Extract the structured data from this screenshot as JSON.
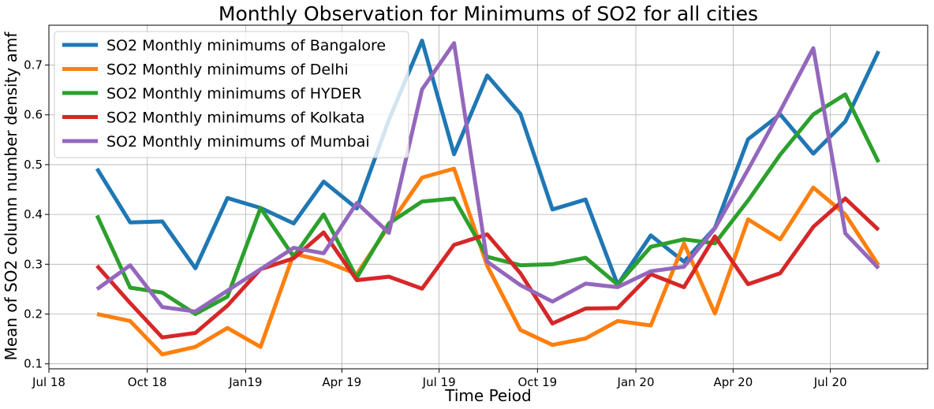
{
  "chart_data": {
    "type": "line",
    "title": "Monthly Observation for Minimums of SO2 for all cities",
    "xlabel": "Time Peiod",
    "ylabel": "Mean of SO2 column number density amf",
    "grid": true,
    "legend_position": "top-left",
    "x": [
      "2018-08",
      "2018-09",
      "2018-10",
      "2018-11",
      "2018-12",
      "2019-01",
      "2019-02",
      "2019-03",
      "2019-04",
      "2019-05",
      "2019-06",
      "2019-07",
      "2019-08",
      "2019-09",
      "2019-10",
      "2019-11",
      "2019-12",
      "2020-01",
      "2020-02",
      "2020-03",
      "2020-04",
      "2020-05",
      "2020-06",
      "2020-07",
      "2020-08"
    ],
    "xlim": [
      "2018-07-01",
      "2020-09-30"
    ],
    "ylim": [
      0.09,
      0.78
    ],
    "xticks": [
      {
        "date": "2018-07-01",
        "label": "Jul 18"
      },
      {
        "date": "2018-10-01",
        "label": "Oct 18"
      },
      {
        "date": "2019-01-01",
        "label": "Jan19"
      },
      {
        "date": "2019-04-01",
        "label": "Apr 19"
      },
      {
        "date": "2019-07-01",
        "label": "Jul 19"
      },
      {
        "date": "2019-10-01",
        "label": "Oct 19"
      },
      {
        "date": "2020-01-01",
        "label": "Jan 20"
      },
      {
        "date": "2020-04-01",
        "label": "Apr 20"
      },
      {
        "date": "2020-07-01",
        "label": "Jul 20"
      }
    ],
    "yticks": [
      {
        "value": 0.1,
        "label": "0.1"
      },
      {
        "value": 0.2,
        "label": "0.2"
      },
      {
        "value": 0.3,
        "label": "0.3"
      },
      {
        "value": 0.4,
        "label": "0.4"
      },
      {
        "value": 0.5,
        "label": "0.5"
      },
      {
        "value": 0.6,
        "label": "0.6"
      },
      {
        "value": 0.7,
        "label": "0.7"
      }
    ],
    "series": [
      {
        "name": "SO2 Monthly minimums of Bangalore",
        "color": "#1f77b4",
        "values": [
          0.492,
          0.384,
          0.386,
          0.292,
          0.433,
          0.413,
          0.382,
          0.466,
          0.412,
          0.59,
          0.749,
          0.521,
          0.679,
          0.602,
          0.41,
          0.43,
          0.259,
          0.358,
          0.305,
          0.373,
          0.551,
          0.601,
          0.522,
          0.587,
          0.728
        ]
      },
      {
        "name": "SO2 Monthly minimums of Delhi",
        "color": "#ff7f0e",
        "values": [
          0.2,
          0.186,
          0.119,
          0.134,
          0.172,
          0.134,
          0.321,
          0.307,
          0.28,
          0.377,
          0.474,
          0.492,
          0.297,
          0.168,
          0.138,
          0.151,
          0.186,
          0.177,
          0.342,
          0.201,
          0.39,
          0.35,
          0.454,
          0.4,
          0.298
        ]
      },
      {
        "name": "SO2 Monthly minimums of HYDER",
        "color": "#2ca02c",
        "values": [
          0.398,
          0.253,
          0.243,
          0.2,
          0.235,
          0.413,
          0.315,
          0.4,
          0.273,
          0.382,
          0.426,
          0.432,
          0.315,
          0.298,
          0.3,
          0.313,
          0.259,
          0.335,
          0.35,
          0.342,
          0.428,
          0.52,
          0.601,
          0.641,
          0.505
        ]
      },
      {
        "name": "SO2 Monthly minimums of Kolkata",
        "color": "#d62728",
        "values": [
          0.297,
          0.222,
          0.153,
          0.162,
          0.217,
          0.29,
          0.312,
          0.364,
          0.268,
          0.275,
          0.251,
          0.339,
          0.36,
          0.282,
          0.181,
          0.211,
          0.212,
          0.28,
          0.254,
          0.356,
          0.26,
          0.282,
          0.375,
          0.432,
          0.369
        ]
      },
      {
        "name": "SO2 Monthly minimums of Mumbai",
        "color": "#9467bd",
        "values": [
          0.25,
          0.298,
          0.214,
          0.205,
          0.247,
          0.29,
          0.333,
          0.322,
          0.423,
          0.363,
          0.651,
          0.744,
          0.305,
          0.258,
          0.225,
          0.261,
          0.254,
          0.286,
          0.295,
          0.372,
          0.49,
          0.608,
          0.734,
          0.362,
          0.292
        ]
      }
    ]
  }
}
